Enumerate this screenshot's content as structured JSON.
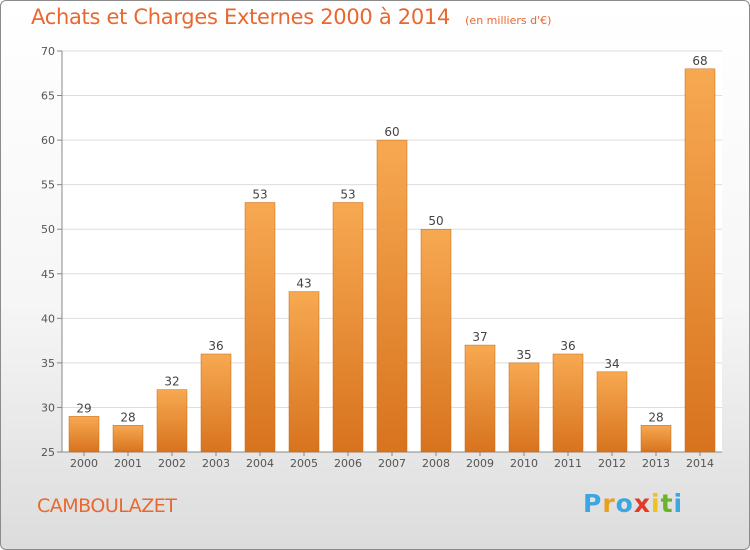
{
  "chart_data": {
    "type": "bar",
    "title": "Achats et Charges Externes 2000 à 2014",
    "subtitle": "(en milliers d'€)",
    "categories": [
      "2000",
      "2001",
      "2002",
      "2003",
      "2004",
      "2005",
      "2006",
      "2007",
      "2008",
      "2009",
      "2010",
      "2011",
      "2012",
      "2013",
      "2014"
    ],
    "values": [
      29,
      28,
      32,
      36,
      53,
      43,
      53,
      60,
      50,
      37,
      35,
      36,
      34,
      28,
      68
    ],
    "ylim": [
      25,
      70
    ],
    "yticks": [
      25,
      30,
      35,
      40,
      45,
      50,
      55,
      60,
      65,
      70
    ],
    "grid": true,
    "bar_color": "#f0963c",
    "bar_color_light": "#f7a952",
    "bar_color_dark": "#d8731e"
  },
  "footer": {
    "commune": "CAMBOULAZET",
    "logo_letters": [
      "P",
      "r",
      "o",
      "x",
      "i",
      "t",
      "i"
    ],
    "logo_colors": [
      "#3aa7e0",
      "#e8a020",
      "#3aa7e0",
      "#e03a2a",
      "#f0c020",
      "#6ab42a",
      "#3aa7e0"
    ]
  }
}
